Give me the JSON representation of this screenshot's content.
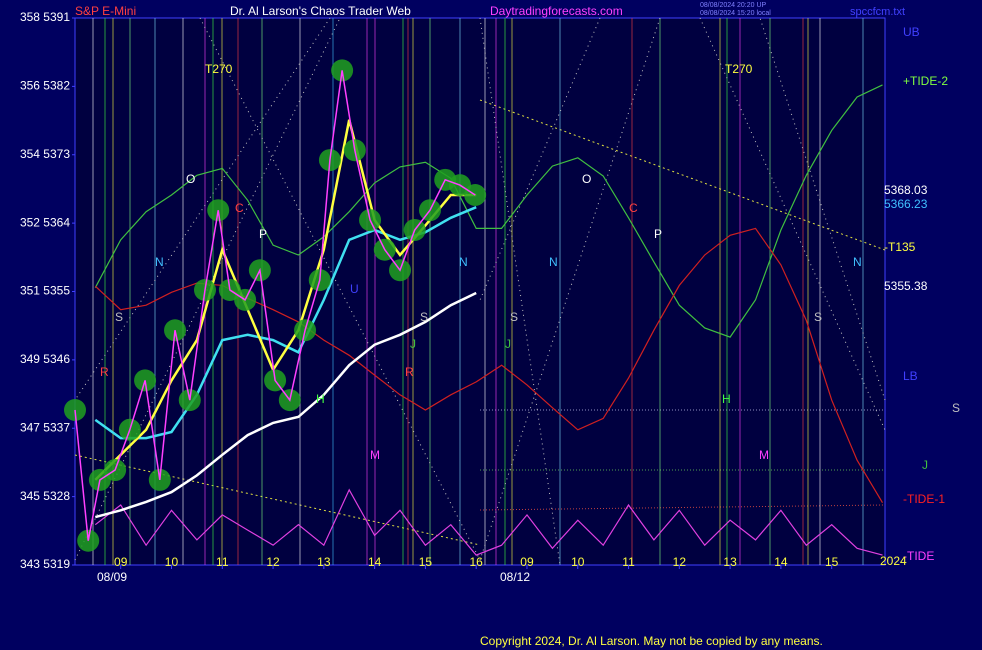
{
  "chart_data": {
    "type": "line",
    "header": {
      "instrument": "S&P E-Mini",
      "title": "Dr. Al Larson's Chaos Trader Web",
      "site": "Daytradingforecasts.com",
      "stamp1": "08/08/2024 20:20 UP",
      "stamp2": "08/08/2024 15:20 local",
      "file": "spccfcm.txt"
    },
    "copyright": "Copyright 2024, Dr. Al Larson. May not be copied by any means.",
    "dates": [
      "08/09",
      "08/12"
    ],
    "ylim": [
      5319,
      5391
    ],
    "yticks": [
      {
        "value": 5319,
        "label": "343  5319"
      },
      {
        "value": 5328,
        "label": "345  5328"
      },
      {
        "value": 5337,
        "label": "347  5337"
      },
      {
        "value": 5346,
        "label": "349  5346"
      },
      {
        "value": 5355,
        "label": "351  5355"
      },
      {
        "value": 5364,
        "label": "352  5364"
      },
      {
        "value": 5373,
        "label": "354  5373"
      },
      {
        "value": 5382,
        "label": "356  5382"
      },
      {
        "value": 5391,
        "label": "358  5391"
      }
    ],
    "xlim": [
      0.1,
      16.05
    ],
    "xticks": [
      {
        "value": 1,
        "label": "09"
      },
      {
        "value": 2,
        "label": "10"
      },
      {
        "value": 3,
        "label": "11"
      },
      {
        "value": 4,
        "label": "12"
      },
      {
        "value": 5,
        "label": "13"
      },
      {
        "value": 6,
        "label": "14"
      },
      {
        "value": 7,
        "label": "15"
      },
      {
        "value": 8,
        "label": "16"
      },
      {
        "value": 9,
        "label": "09"
      },
      {
        "value": 10,
        "label": "10"
      },
      {
        "value": 11,
        "label": "11"
      },
      {
        "value": 12,
        "label": "12"
      },
      {
        "value": 13,
        "label": "13"
      },
      {
        "value": 14,
        "label": "14"
      },
      {
        "value": 15,
        "label": "15"
      }
    ],
    "x": [
      0.5,
      1,
      1.5,
      2,
      2.5,
      3,
      3.5,
      4,
      4.5,
      5,
      5.5,
      6,
      6.5,
      7,
      7.5,
      8,
      8.5,
      9,
      9.5,
      10,
      10.5,
      11,
      11.5,
      12,
      12.5,
      13,
      13.5,
      14,
      14.5,
      15,
      15.5,
      16
    ],
    "series": [
      {
        "color": "#40c040",
        "values": [
          5355.5,
          5361.8,
          5365.5,
          5367.7,
          5370.3,
          5371.2,
          5367.0,
          5361.1,
          5359.8,
          5362.2,
          5365.5,
          5369.3,
          5371.4,
          5372.0,
          5369.9,
          5363.3,
          5363.3,
          5367.7,
          5371.5,
          5372.6,
          5370.2,
          5364.7,
          5358.9,
          5353.2,
          5350.2,
          5349.0,
          5353.9,
          5363.1,
          5370.3,
          5376.2,
          5380.6,
          5382.2
        ]
      },
      {
        "color": "#d02020",
        "values": [
          5355.7,
          5352.6,
          5353.2,
          5354.9,
          5356.1,
          5355.8,
          5354.1,
          5352.6,
          5351.0,
          5348.6,
          5346.6,
          5344.0,
          5341.4,
          5339.4,
          5341.4,
          5343.1,
          5345.3,
          5342.7,
          5339.7,
          5336.8,
          5338.3,
          5343.6,
          5349.9,
          5355.8,
          5359.8,
          5362.4,
          5363.3,
          5358.5,
          5351.2,
          5340.7,
          5332.8,
          5327.2
        ]
      },
      {
        "color": "#e040e0",
        "values": [
          5324.3,
          5326.9,
          5321.6,
          5326.2,
          5322.3,
          5325.6,
          5323.6,
          5321.6,
          5324.3,
          5321.6,
          5328.9,
          5322.9,
          5326.2,
          5321.6,
          5324.3,
          5320.3,
          5321.6,
          5325.6,
          5321.2,
          5324.9,
          5321.6,
          5326.9,
          5322.3,
          5326.2,
          5321.6,
          5324.9,
          5322.3,
          5326.2,
          5321.6,
          5324.3,
          5321.2,
          5320.3
        ]
      },
      {
        "color": "#ffffff",
        "values": [
          5325.3,
          5326.2,
          5327.3,
          5328.6,
          5330.8,
          5333.5,
          5336.1,
          5337.7,
          5338.5,
          5341.4,
          5345.3,
          5348.0,
          5349.3,
          5351.0,
          5353.2,
          5354.8,
          null,
          null,
          null,
          null,
          null,
          null,
          null,
          null,
          null,
          null,
          null,
          null,
          null,
          null,
          null,
          null
        ]
      },
      {
        "color": "#40e0f0",
        "values": [
          5338.1,
          5335.7,
          5335.7,
          5336.5,
          5341.4,
          5348.6,
          5349.3,
          5348.6,
          5347.0,
          5353.9,
          5361.8,
          5363.1,
          5361.8,
          5362.8,
          5364.7,
          5366.1,
          null,
          null,
          null,
          null,
          null,
          null,
          null,
          null,
          null,
          null,
          null,
          null,
          null,
          null,
          null,
          null
        ]
      },
      {
        "color": "#ffff40",
        "values": [
          5330.2,
          5333.5,
          5336.8,
          5343.3,
          5348.6,
          5360.5,
          5352.6,
          5344.7,
          5349.9,
          5360.5,
          5377.6,
          5364.4,
          5359.8,
          5363.7,
          5367.7,
          5367.7,
          null,
          null,
          null,
          null,
          null,
          null,
          null,
          null,
          null,
          null,
          null,
          null,
          null,
          null,
          null,
          null
        ]
      }
    ],
    "price": {
      "color": "#ff40ff",
      "marker_color": "#20a020",
      "x": [
        0.1,
        0.36,
        0.59,
        0.89,
        1.18,
        1.48,
        1.77,
        2.07,
        2.36,
        2.66,
        2.92,
        3.15,
        3.45,
        3.74,
        4.04,
        4.33,
        4.63,
        4.92,
        5.12,
        5.36,
        5.61,
        5.91,
        6.2,
        6.5,
        6.79,
        7.09,
        7.39,
        7.68,
        7.98
      ],
      "values": [
        5339.4,
        5322.2,
        5330.2,
        5331.5,
        5336.8,
        5343.3,
        5330.2,
        5349.9,
        5340.7,
        5355.2,
        5365.7,
        5355.2,
        5353.9,
        5357.8,
        5343.3,
        5340.7,
        5349.9,
        5356.5,
        5372.3,
        5384.1,
        5373.6,
        5364.4,
        5360.5,
        5357.8,
        5363.1,
        5365.7,
        5369.7,
        5369.0,
        5367.7
      ]
    },
    "right_labels": [
      "UB",
      "+TIDE-2",
      "5368.03",
      "5366.23",
      "-T135",
      "5355.38",
      "LB",
      "S",
      "J",
      "-TIDE-1",
      "-TIDE",
      "2024"
    ],
    "annotations": [
      "T270",
      "T270",
      "O",
      "O",
      "C",
      "C",
      "P",
      "P",
      "N",
      "N",
      "N",
      "N",
      "S",
      "S",
      "S",
      "S",
      "R",
      "R",
      "H",
      "H",
      "M",
      "M",
      "U",
      "J",
      "J"
    ]
  }
}
